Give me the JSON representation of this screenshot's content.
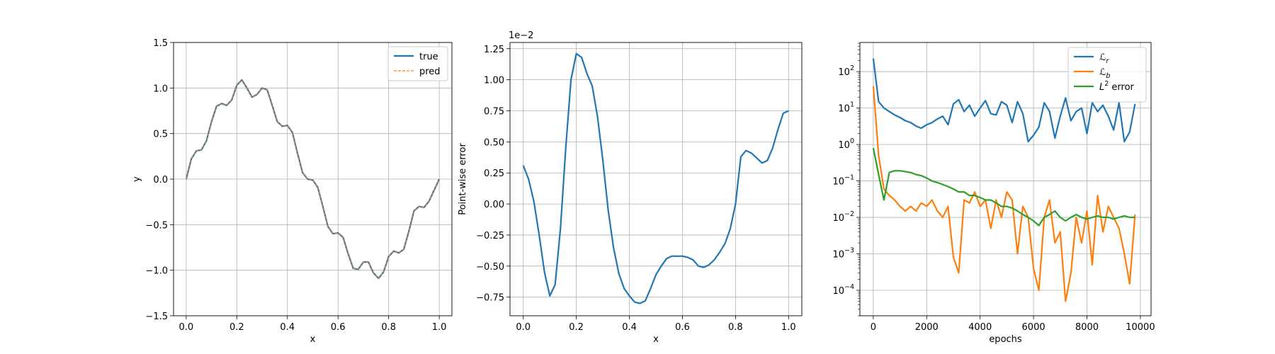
{
  "chart_data": [
    {
      "type": "line",
      "xlabel": "x",
      "ylabel": "y",
      "xlim": [
        -0.05,
        1.05
      ],
      "ylim": [
        -1.5,
        1.5
      ],
      "grid": true,
      "legend": "upper-right",
      "xticks": [
        0.0,
        0.2,
        0.4,
        0.6,
        0.8,
        1.0
      ],
      "xtick_labels": [
        "0.0",
        "0.2",
        "0.4",
        "0.6",
        "0.8",
        "1.0"
      ],
      "yticks": [
        -1.5,
        -1.0,
        -0.5,
        0.0,
        0.5,
        1.0,
        1.5
      ],
      "ytick_labels": [
        "−1.5",
        "−1.0",
        "−0.5",
        "0.0",
        "0.5",
        "1.0",
        "1.5"
      ],
      "x": [
        0.0,
        0.02,
        0.04,
        0.06,
        0.08,
        0.1,
        0.12,
        0.14,
        0.16,
        0.18,
        0.2,
        0.22,
        0.24,
        0.26,
        0.28,
        0.3,
        0.32,
        0.34,
        0.36,
        0.38,
        0.4,
        0.42,
        0.44,
        0.46,
        0.48,
        0.5,
        0.52,
        0.54,
        0.56,
        0.58,
        0.6,
        0.62,
        0.64,
        0.66,
        0.68,
        0.7,
        0.72,
        0.74,
        0.76,
        0.78,
        0.8,
        0.82,
        0.84,
        0.86,
        0.88,
        0.9,
        0.92,
        0.94,
        0.96,
        0.98,
        1.0
      ],
      "series": [
        {
          "name": "true",
          "color": "#1f77b4",
          "style": "solid",
          "values": [
            0.0,
            0.22,
            0.31,
            0.32,
            0.42,
            0.63,
            0.8,
            0.83,
            0.81,
            0.87,
            1.03,
            1.09,
            1.0,
            0.9,
            0.93,
            1.0,
            0.98,
            0.81,
            0.63,
            0.58,
            0.59,
            0.51,
            0.28,
            0.07,
            0.0,
            -0.01,
            -0.09,
            -0.3,
            -0.52,
            -0.6,
            -0.59,
            -0.64,
            -0.82,
            -0.98,
            -0.99,
            -0.91,
            -0.91,
            -1.03,
            -1.09,
            -1.02,
            -0.85,
            -0.79,
            -0.81,
            -0.77,
            -0.57,
            -0.35,
            -0.3,
            -0.31,
            -0.24,
            -0.12,
            0.0
          ]
        },
        {
          "name": "pred",
          "color": "#ff7f0e",
          "style": "dashed",
          "values": [
            0.0,
            0.22,
            0.31,
            0.32,
            0.42,
            0.63,
            0.8,
            0.83,
            0.81,
            0.87,
            1.03,
            1.09,
            1.0,
            0.9,
            0.93,
            1.0,
            0.98,
            0.81,
            0.63,
            0.58,
            0.59,
            0.51,
            0.28,
            0.07,
            0.0,
            -0.01,
            -0.09,
            -0.3,
            -0.52,
            -0.6,
            -0.59,
            -0.64,
            -0.82,
            -0.98,
            -0.99,
            -0.91,
            -0.91,
            -1.03,
            -1.09,
            -1.02,
            -0.85,
            -0.79,
            -0.81,
            -0.77,
            -0.57,
            -0.35,
            -0.3,
            -0.31,
            -0.24,
            -0.12,
            0.0
          ]
        }
      ]
    },
    {
      "type": "line",
      "xlabel": "x",
      "ylabel": "Point-wise error",
      "offset_text": "1e−2",
      "xlim": [
        -0.05,
        1.05
      ],
      "ylim": [
        -0.9,
        1.3
      ],
      "grid": true,
      "xticks": [
        0.0,
        0.2,
        0.4,
        0.6,
        0.8,
        1.0
      ],
      "xtick_labels": [
        "0.0",
        "0.2",
        "0.4",
        "0.6",
        "0.8",
        "1.0"
      ],
      "yticks": [
        -0.75,
        -0.5,
        -0.25,
        0.0,
        0.25,
        0.5,
        0.75,
        1.0,
        1.25
      ],
      "ytick_labels": [
        "−0.75",
        "−0.50",
        "−0.25",
        "0.00",
        "0.25",
        "0.50",
        "0.75",
        "1.00",
        "1.25"
      ],
      "x": [
        0.0,
        0.02,
        0.04,
        0.06,
        0.08,
        0.1,
        0.12,
        0.14,
        0.16,
        0.18,
        0.2,
        0.22,
        0.24,
        0.26,
        0.28,
        0.3,
        0.32,
        0.34,
        0.36,
        0.38,
        0.4,
        0.42,
        0.44,
        0.46,
        0.48,
        0.5,
        0.52,
        0.54,
        0.56,
        0.58,
        0.6,
        0.62,
        0.64,
        0.66,
        0.68,
        0.7,
        0.72,
        0.74,
        0.76,
        0.78,
        0.8,
        0.82,
        0.84,
        0.86,
        0.88,
        0.9,
        0.92,
        0.94,
        0.96,
        0.98,
        1.0
      ],
      "series": [
        {
          "color": "#1f77b4",
          "values": [
            0.31,
            0.2,
            0.02,
            -0.25,
            -0.55,
            -0.74,
            -0.65,
            -0.2,
            0.45,
            1.0,
            1.21,
            1.18,
            1.05,
            0.95,
            0.7,
            0.35,
            -0.05,
            -0.35,
            -0.56,
            -0.68,
            -0.74,
            -0.79,
            -0.8,
            -0.78,
            -0.68,
            -0.57,
            -0.5,
            -0.44,
            -0.42,
            -0.42,
            -0.42,
            -0.43,
            -0.45,
            -0.5,
            -0.51,
            -0.49,
            -0.45,
            -0.39,
            -0.32,
            -0.2,
            0.0,
            0.38,
            0.43,
            0.41,
            0.37,
            0.33,
            0.35,
            0.45,
            0.6,
            0.73,
            0.75
          ]
        }
      ]
    },
    {
      "type": "line",
      "xlabel": "epochs",
      "ylabel": "",
      "yscale": "log",
      "xlim": [
        -500,
        10400
      ],
      "ylim_log10": [
        -4.7,
        2.8
      ],
      "grid": true,
      "legend": "upper-right",
      "xticks": [
        0,
        2000,
        4000,
        6000,
        8000,
        10000
      ],
      "xtick_labels": [
        "0",
        "2000",
        "4000",
        "6000",
        "8000",
        "10000"
      ],
      "yticks_log10": [
        -4,
        -3,
        -2,
        -1,
        0,
        1,
        2
      ],
      "ytick_base": "10",
      "ytick_exponents": [
        "−4",
        "−3",
        "−2",
        "−1",
        "0",
        "1",
        "2"
      ],
      "x": [
        0,
        200,
        400,
        600,
        800,
        1000,
        1200,
        1400,
        1600,
        1800,
        2000,
        2200,
        2400,
        2600,
        2800,
        3000,
        3200,
        3400,
        3600,
        3800,
        4000,
        4200,
        4400,
        4600,
        4800,
        5000,
        5200,
        5400,
        5600,
        5800,
        6000,
        6200,
        6400,
        6600,
        6800,
        7000,
        7200,
        7400,
        7600,
        7800,
        8000,
        8200,
        8400,
        8600,
        8800,
        9000,
        9200,
        9400,
        9600,
        9800
      ],
      "series": [
        {
          "name": "ℒ_r",
          "label_main": "ℒ",
          "label_sub": "r",
          "color": "#1f77b4",
          "values": [
            230,
            15,
            10,
            8,
            6.5,
            5.5,
            4.5,
            4,
            3.2,
            2.8,
            3.5,
            4,
            5,
            6,
            3.5,
            13,
            17,
            8,
            12,
            6,
            10,
            16,
            7,
            6.5,
            15,
            12,
            4,
            15,
            7,
            1.2,
            1.8,
            3,
            14,
            8,
            1.5,
            6,
            19,
            4.5,
            8,
            10,
            2,
            14,
            8,
            12,
            6,
            2.5,
            14,
            1.2,
            2.2,
            13
          ]
        },
        {
          "name": "ℒ_b",
          "label_main": "ℒ",
          "label_sub": "b",
          "color": "#ff7f0e",
          "values": [
            40,
            0.5,
            0.06,
            0.04,
            0.03,
            0.02,
            0.015,
            0.02,
            0.015,
            0.025,
            0.02,
            0.03,
            0.015,
            0.01,
            0.02,
            0.0008,
            0.0003,
            0.03,
            0.025,
            0.05,
            0.02,
            0.03,
            0.005,
            0.03,
            0.01,
            0.05,
            0.03,
            0.001,
            0.02,
            0.01,
            0.0004,
            0.0001,
            0.01,
            0.03,
            0.002,
            0.004,
            5e-05,
            0.0003,
            0.01,
            0.002,
            0.015,
            0.0005,
            0.04,
            0.004,
            0.02,
            0.01,
            0.005,
            0.001,
            0.00015,
            0.012
          ]
        },
        {
          "name": "L² error",
          "label_main": "L",
          "label_sup": "2",
          "label_rest": "error",
          "color": "#2ca02c",
          "values": [
            0.8,
            0.15,
            0.03,
            0.17,
            0.19,
            0.19,
            0.18,
            0.17,
            0.15,
            0.14,
            0.12,
            0.1,
            0.09,
            0.08,
            0.07,
            0.06,
            0.05,
            0.05,
            0.04,
            0.04,
            0.035,
            0.03,
            0.03,
            0.025,
            0.02,
            0.02,
            0.018,
            0.015,
            0.012,
            0.01,
            0.008,
            0.006,
            0.01,
            0.012,
            0.015,
            0.01,
            0.008,
            0.01,
            0.012,
            0.01,
            0.009,
            0.01,
            0.011,
            0.01,
            0.01,
            0.009,
            0.01,
            0.011,
            0.01,
            0.01
          ]
        }
      ]
    }
  ]
}
